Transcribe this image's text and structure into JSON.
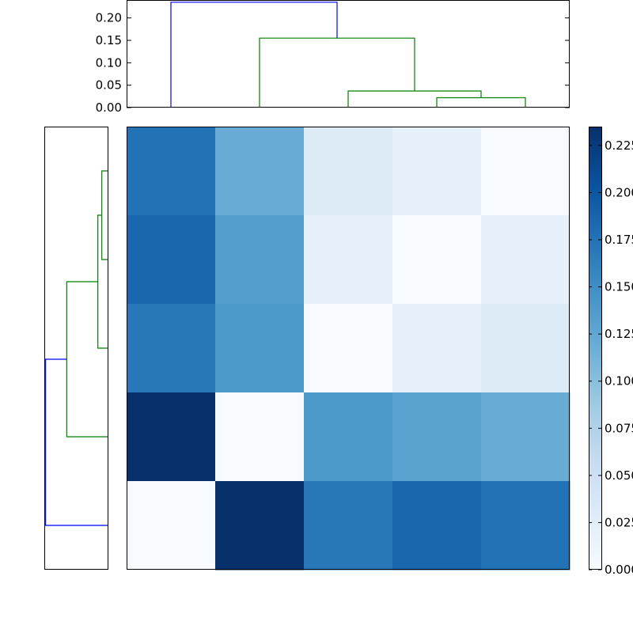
{
  "chart_data": [
    {
      "type": "dendrogram",
      "orientation": "top",
      "ylim": [
        0.0,
        0.24
      ],
      "yticks": [
        "0.00",
        "0.05",
        "0.10",
        "0.15",
        "0.20"
      ],
      "ytick_values": [
        0.0,
        0.05,
        0.1,
        0.15,
        0.2
      ],
      "leaf_order": [
        0,
        1,
        2,
        3,
        4
      ],
      "merges": [
        {
          "left": 3,
          "right": 4,
          "height": 0.022,
          "color": "#008000"
        },
        {
          "left": 2,
          "right": "3+4",
          "height": 0.037,
          "color": "#008000"
        },
        {
          "left": 1,
          "right": "2+3+4",
          "height": 0.155,
          "color": "#008000"
        },
        {
          "left": 0,
          "right": "1+2+3+4",
          "height": 0.235,
          "color": "#0000ff"
        }
      ]
    },
    {
      "type": "dendrogram",
      "orientation": "left",
      "leaf_order_bottom_to_top": [
        0,
        1,
        2,
        3,
        4
      ],
      "merges": [
        {
          "left": 3,
          "right": 4,
          "height": 0.022,
          "color": "#008000"
        },
        {
          "left": 2,
          "right": "3+4",
          "height": 0.037,
          "color": "#008000"
        },
        {
          "left": 1,
          "right": "2+3+4",
          "height": 0.155,
          "color": "#008000"
        },
        {
          "left": 0,
          "right": "1+2+3+4",
          "height": 0.235,
          "color": "#0000ff"
        }
      ]
    },
    {
      "type": "heatmap",
      "colormap": [
        "#f7fbff",
        "#deebf7",
        "#c6dbef",
        "#9ecae1",
        "#6baed6",
        "#4292c6",
        "#2171b5",
        "#08519c",
        "#08306b"
      ],
      "vmin": 0.0,
      "vmax": 0.235,
      "rows_top_to_bottom": [
        [
          0.175,
          0.12,
          0.03,
          0.02,
          0.0
        ],
        [
          0.185,
          0.135,
          0.02,
          0.0,
          0.02
        ],
        [
          0.17,
          0.14,
          0.0,
          0.02,
          0.03
        ],
        [
          0.235,
          0.0,
          0.14,
          0.13,
          0.12
        ],
        [
          0.0,
          0.235,
          0.17,
          0.185,
          0.175
        ]
      ]
    },
    {
      "type": "colorbar",
      "ticks": [
        "0.000",
        "0.025",
        "0.050",
        "0.075",
        "0.100",
        "0.125",
        "0.150",
        "0.175",
        "0.200",
        "0.225"
      ],
      "tick_values": [
        0.0,
        0.025,
        0.05,
        0.075,
        0.1,
        0.125,
        0.15,
        0.175,
        0.2,
        0.225
      ]
    }
  ]
}
